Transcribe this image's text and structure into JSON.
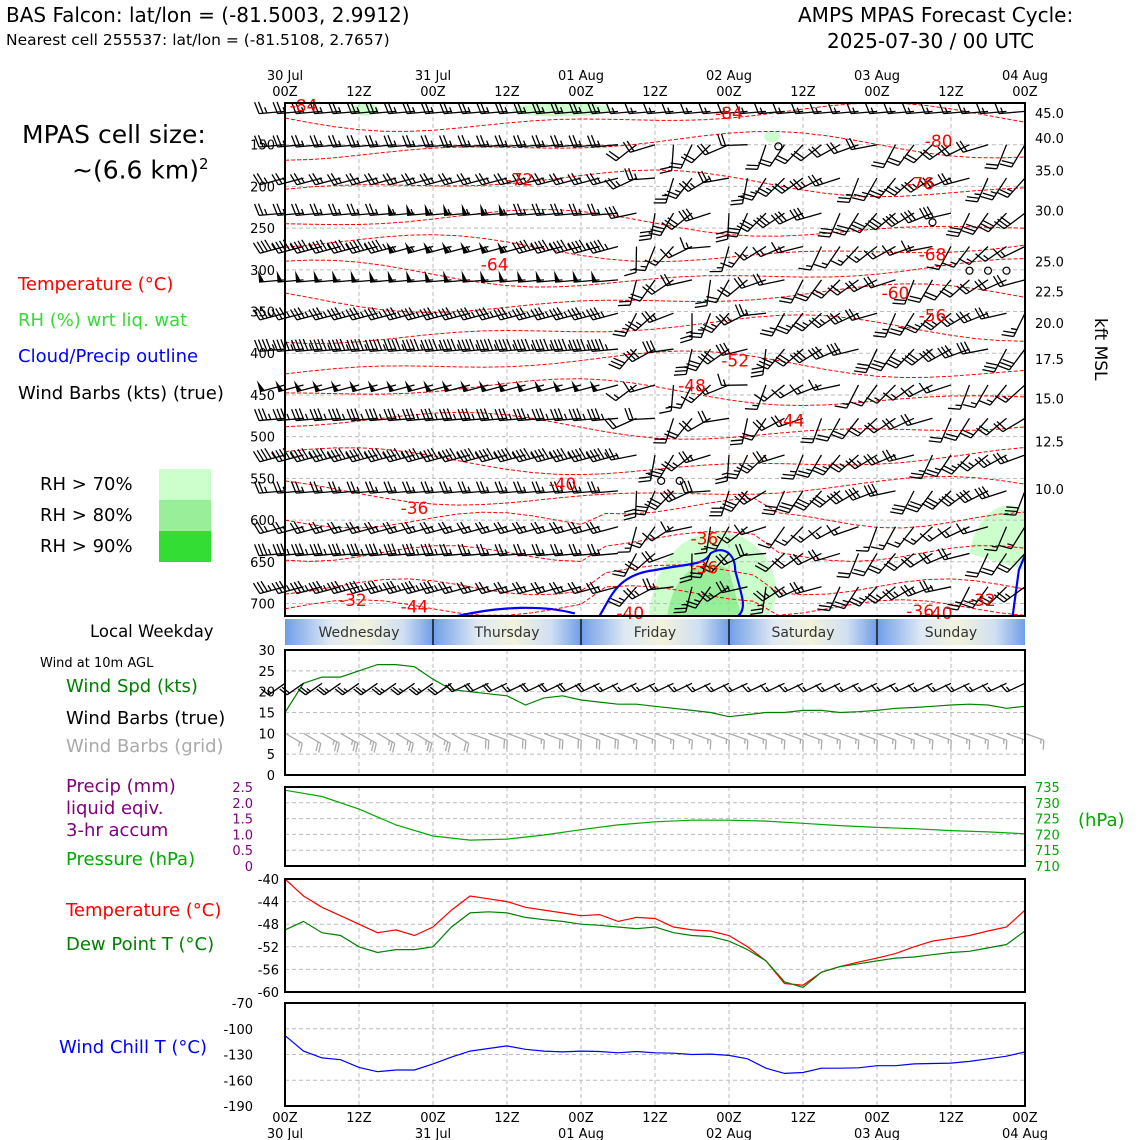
{
  "header": {
    "title_left": "BAS Falcon: lat/lon = (-81.5003, 2.9912)",
    "subtitle_left": "Nearest cell 255537: lat/lon = (-81.5108, 2.7657)",
    "title_right_1": "AMPS MPAS Forecast Cycle:",
    "title_right_2": "2025-07-30 / 00 UTC"
  },
  "legend": {
    "cell_size_1": "MPAS cell size:",
    "cell_size_2": "~(6.6 km)",
    "cell_size_sup": "2",
    "temperature": "Temperature (°C)",
    "rh": "RH (%) wrt liq. wat",
    "cloud": "Cloud/Precip outline",
    "wind_barbs": "Wind Barbs (kts) (true)",
    "rh70": "RH > 70%",
    "rh80": "RH > 80%",
    "rh90": "RH > 90%",
    "local_weekday": "Local Weekday",
    "wind_10m": "Wind at 10m AGL",
    "wind_spd": "Wind Spd (kts)",
    "wind_barbs_true": "Wind Barbs (true)",
    "wind_barbs_grid": "Wind Barbs (grid)",
    "precip_1": "Precip (mm)",
    "precip_2": "liquid eqiv.",
    "precip_3": "3-hr accum",
    "pressure": "Pressure (hPa)",
    "temp2": "Temperature (°C)",
    "dewpoint": "Dew Point T (°C)",
    "windchill": "Wind Chill T (°C)",
    "kft": "kft MSL",
    "hpa_unit": "(hPa)"
  },
  "colors": {
    "temperature": "#ff0000",
    "rh_label": "#33dd33",
    "cloud": "#0000ff",
    "rh70": "#ccffcc",
    "rh80": "#99ee99",
    "rh90": "#33dd33",
    "wind_spd": "#008000",
    "barb_grid": "#aaaaaa",
    "precip": "#800080",
    "pressure": "#00aa00",
    "dewpoint": "#008000",
    "windchill": "#0000ff",
    "weekday_band": "#6699dd"
  },
  "time_axis": {
    "major_top": [
      "30 Jul",
      "31 Jul",
      "01 Aug",
      "02 Aug",
      "03 Aug",
      "04 Aug"
    ],
    "hour_labels": [
      "00Z",
      "12Z",
      "00Z",
      "12Z",
      "00Z",
      "12Z",
      "00Z",
      "12Z",
      "00Z",
      "12Z",
      "00Z"
    ],
    "hours_range": [
      0,
      120
    ]
  },
  "weekdays": [
    "Wednesday",
    "Thursday",
    "Friday",
    "Saturday",
    "Sunday"
  ],
  "chart_data": [
    {
      "type": "heatmap",
      "panel": "vertical cross-section",
      "x_hours": [
        0,
        120
      ],
      "y_pressure_ticks": [
        150,
        200,
        250,
        300,
        350,
        400,
        450,
        500,
        550,
        600,
        650,
        700
      ],
      "y_pressure_range": [
        100,
        715
      ],
      "y_kft_ticks": [
        "45.0",
        "40.0",
        "35.0",
        "30.0",
        "25.0",
        "22.5",
        "20.0",
        "17.5",
        "15.0",
        "12.5",
        "10.0"
      ],
      "y_kft_pressure": [
        112,
        142,
        181,
        229,
        290,
        326,
        364,
        407,
        454,
        506,
        563
      ],
      "temperature_labels": [
        {
          "text": "-84",
          "hour": 3,
          "p": 104
        },
        {
          "text": "-84",
          "hour": 72,
          "p": 113
        },
        {
          "text": "-80",
          "hour": 106,
          "p": 147
        },
        {
          "text": "-72",
          "hour": 38,
          "p": 193
        },
        {
          "text": "-76",
          "hour": 103,
          "p": 198
        },
        {
          "text": "-68",
          "hour": 105,
          "p": 283
        },
        {
          "text": "-64",
          "hour": 34,
          "p": 295
        },
        {
          "text": "-60",
          "hour": 99,
          "p": 329
        },
        {
          "text": "-56",
          "hour": 105,
          "p": 356
        },
        {
          "text": "-52",
          "hour": 73,
          "p": 410
        },
        {
          "text": "-48",
          "hour": 66,
          "p": 440
        },
        {
          "text": "-44",
          "hour": 82,
          "p": 482
        },
        {
          "text": "-40",
          "hour": 45,
          "p": 558
        },
        {
          "text": "-36",
          "hour": 21,
          "p": 587
        },
        {
          "text": "-36",
          "hour": 68,
          "p": 623
        },
        {
          "text": "-36",
          "hour": 68,
          "p": 658
        },
        {
          "text": "-32",
          "hour": 11,
          "p": 697
        },
        {
          "text": "-32",
          "hour": 113,
          "p": 697
        },
        {
          "text": "-44",
          "hour": 21,
          "p": 705
        },
        {
          "text": "-40",
          "hour": 56,
          "p": 716
        },
        {
          "text": "-36",
          "hour": 103,
          "p": 710
        },
        {
          "text": "-40",
          "hour": 106,
          "p": 716
        }
      ]
    },
    {
      "type": "line",
      "panel": "wind speed",
      "x_hours": [
        0,
        3,
        6,
        9,
        12,
        15,
        18,
        21,
        24,
        27,
        30,
        33,
        36,
        39,
        42,
        45,
        48,
        51,
        54,
        57,
        60,
        63,
        66,
        69,
        72,
        75,
        78,
        81,
        84,
        87,
        90,
        93,
        96,
        99,
        102,
        105,
        108,
        111,
        114,
        117,
        120
      ],
      "series": [
        {
          "name": "Wind Spd (kts)",
          "values": [
            15,
            22,
            23.5,
            23.5,
            25,
            26.5,
            26.5,
            26,
            23,
            20.5,
            20,
            19.5,
            19,
            16.8,
            18.5,
            19,
            18,
            17.5,
            17,
            17,
            16.5,
            16,
            15.5,
            15,
            14,
            14.5,
            15,
            15,
            15.5,
            15.5,
            15,
            15.2,
            15.5,
            16,
            16.2,
            16.5,
            16.8,
            17,
            16.8,
            16,
            16.5
          ]
        }
      ],
      "ylim": [
        0,
        30
      ],
      "yticks": [
        0,
        5,
        10,
        15,
        20,
        25,
        30
      ]
    },
    {
      "type": "line",
      "panel": "precip/pressure",
      "x_hours": [
        0,
        6,
        12,
        18,
        24,
        30,
        36,
        42,
        48,
        54,
        60,
        66,
        72,
        78,
        84,
        90,
        96,
        102,
        108,
        114,
        120
      ],
      "series": [
        {
          "name": "Pressure (hPa)",
          "values": [
            734,
            732,
            728,
            723,
            719.5,
            718.2,
            718.5,
            719.8,
            721.5,
            723,
            724,
            724.5,
            724.5,
            724.2,
            723.5,
            722.8,
            722.2,
            721.8,
            721.2,
            720.8,
            720.2
          ]
        }
      ],
      "ylim_precip": [
        0,
        2.5
      ],
      "yticks_precip": [
        "0",
        "0.5",
        "1.0",
        "1.5",
        "2.0",
        "2.5"
      ],
      "ylim_pressure": [
        710,
        735
      ],
      "yticks_pressure": [
        710,
        715,
        720,
        725,
        730,
        735
      ]
    },
    {
      "type": "line",
      "panel": "temperature",
      "x_hours": [
        0,
        3,
        6,
        9,
        12,
        15,
        18,
        21,
        24,
        27,
        30,
        33,
        36,
        39,
        42,
        45,
        48,
        51,
        54,
        57,
        60,
        63,
        66,
        69,
        72,
        75,
        78,
        81,
        84,
        87,
        90,
        93,
        96,
        99,
        102,
        105,
        108,
        111,
        114,
        117,
        120
      ],
      "series": [
        {
          "name": "Temperature (°C)",
          "values": [
            -40,
            -43,
            -45,
            -46.5,
            -48,
            -49.5,
            -49,
            -50,
            -48.5,
            -45.5,
            -43,
            -43.5,
            -44,
            -45,
            -45.5,
            -46,
            -46.5,
            -46.3,
            -47.5,
            -46.8,
            -47,
            -48.5,
            -49,
            -49.2,
            -50,
            -52,
            -54.5,
            -58.5,
            -58.8,
            -56.5,
            -55.5,
            -54.7,
            -54,
            -53.2,
            -52,
            -51,
            -50.5,
            -50,
            -49.2,
            -48.5,
            -45.5
          ]
        },
        {
          "name": "Dew Point T (°C)",
          "values": [
            -49,
            -47.5,
            -49.5,
            -50,
            -52,
            -53,
            -52.5,
            -52.5,
            -52,
            -48.5,
            -46,
            -45.8,
            -46,
            -46.8,
            -47.2,
            -47.5,
            -48,
            -48.2,
            -48.5,
            -48.8,
            -48.5,
            -49.5,
            -50,
            -50.2,
            -51,
            -52.5,
            -54.5,
            -58.2,
            -59.2,
            -56.5,
            -55.5,
            -55,
            -54.5,
            -54,
            -53.8,
            -53.4,
            -53,
            -52.8,
            -52.2,
            -51.6,
            -49.2
          ]
        }
      ],
      "ylim": [
        -60,
        -40
      ],
      "yticks": [
        -60,
        -56,
        -52,
        -48,
        -44,
        -40
      ]
    },
    {
      "type": "line",
      "panel": "wind chill",
      "x_hours": [
        0,
        3,
        6,
        9,
        12,
        15,
        18,
        21,
        24,
        27,
        30,
        33,
        36,
        39,
        42,
        45,
        48,
        51,
        54,
        57,
        60,
        63,
        66,
        69,
        72,
        75,
        78,
        81,
        84,
        87,
        90,
        93,
        96,
        99,
        102,
        105,
        108,
        111,
        114,
        117,
        120
      ],
      "series": [
        {
          "name": "Wind Chill T (°C)",
          "values": [
            -108,
            -126,
            -134,
            -136,
            -145,
            -150,
            -148,
            -148,
            -141,
            -133,
            -126,
            -123,
            -120,
            -124,
            -126,
            -127,
            -126,
            -126.5,
            -128,
            -126.5,
            -128,
            -128.5,
            -130,
            -129.5,
            -131,
            -135,
            -146,
            -152,
            -151,
            -146,
            -146,
            -145.5,
            -143,
            -143,
            -141,
            -140.5,
            -140,
            -138,
            -135,
            -132,
            -127
          ]
        }
      ],
      "ylim": [
        -190,
        -70
      ],
      "yticks": [
        -190,
        -160,
        -130,
        -100,
        -70
      ]
    }
  ]
}
